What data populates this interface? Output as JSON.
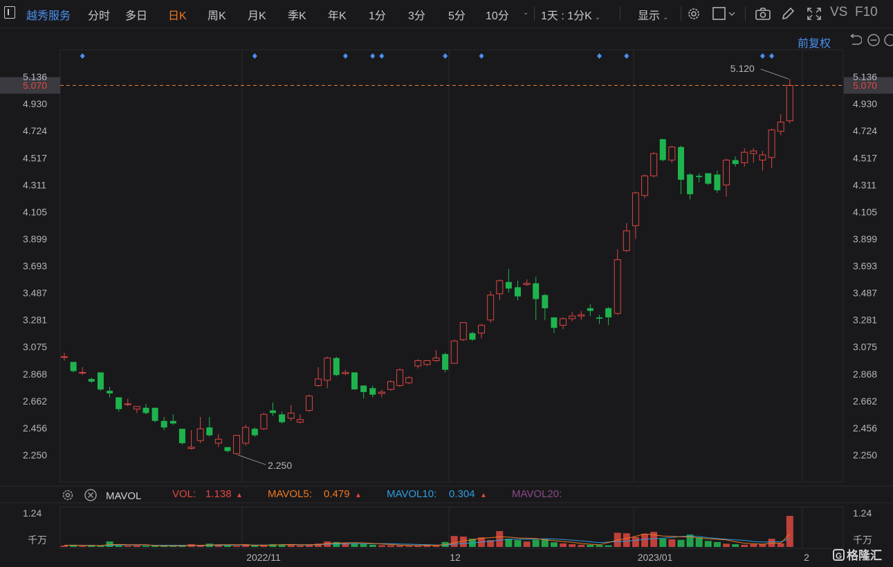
{
  "toolbar": {
    "stock_name": "越秀服务",
    "tabs": [
      "分时",
      "多日",
      "日K",
      "周K",
      "月K",
      "季K",
      "年K",
      "1分",
      "3分",
      "5分",
      "10分"
    ],
    "active_tab": "日K",
    "combo_label": "1天 : 1分K",
    "display_label": "显示",
    "vs_label": "VS",
    "f10_label": "F10",
    "adjust_label": "前复权"
  },
  "colors": {
    "up": "#e0473f",
    "down": "#1fb34e",
    "accent": "#f0781e",
    "link": "#4a90f0",
    "price_line": "#f08030"
  },
  "price_axis": {
    "ticks": [
      "5.136",
      "4.930",
      "4.724",
      "4.517",
      "4.311",
      "4.105",
      "3.899",
      "3.693",
      "3.487",
      "3.281",
      "3.075",
      "2.868",
      "2.662",
      "2.456",
      "2.250"
    ],
    "current_price": "5.070",
    "high_label": "5.120",
    "low_label": "2.250"
  },
  "volume_axis": {
    "max_label": "1.24",
    "unit_label": "千万"
  },
  "x_axis_labels": [
    "2022/11",
    "12",
    "2023/01",
    "2"
  ],
  "indicators": {
    "name": "MAVOL",
    "vol_label": "VOL:",
    "vol_value": "1.138",
    "mavol5_label": "MAVOL5:",
    "mavol5_value": "0.479",
    "mavol10_label": "MAVOL10:",
    "mavol10_value": "0.304",
    "mavol20_label": "MAVOL20:"
  },
  "logo_text": "格隆汇",
  "chart_data": {
    "type": "candlestick",
    "ylim": [
      2.15,
      5.21
    ],
    "candles": [
      {
        "o": 3.0,
        "c": 3.0,
        "h": 3.03,
        "l": 2.97
      },
      {
        "o": 2.96,
        "c": 2.89,
        "h": 2.96,
        "l": 2.88
      },
      {
        "o": 2.88,
        "c": 2.88,
        "h": 2.92,
        "l": 2.86
      },
      {
        "o": 2.83,
        "c": 2.81,
        "h": 2.84,
        "l": 2.8
      },
      {
        "o": 2.88,
        "c": 2.75,
        "h": 2.88,
        "l": 2.74
      },
      {
        "o": 2.74,
        "c": 2.72,
        "h": 2.77,
        "l": 2.69
      },
      {
        "o": 2.69,
        "c": 2.6,
        "h": 2.69,
        "l": 2.58
      },
      {
        "o": 2.64,
        "c": 2.64,
        "h": 2.68,
        "l": 2.62
      },
      {
        "o": 2.6,
        "c": 2.62,
        "h": 2.62,
        "l": 2.57
      },
      {
        "o": 2.61,
        "c": 2.57,
        "h": 2.64,
        "l": 2.56
      },
      {
        "o": 2.61,
        "c": 2.51,
        "h": 2.61,
        "l": 2.5
      },
      {
        "o": 2.51,
        "c": 2.46,
        "h": 2.54,
        "l": 2.44
      },
      {
        "o": 2.51,
        "c": 2.49,
        "h": 2.56,
        "l": 2.48
      },
      {
        "o": 2.45,
        "c": 2.34,
        "h": 2.45,
        "l": 2.33
      },
      {
        "o": 2.3,
        "c": 2.31,
        "h": 2.44,
        "l": 2.29
      },
      {
        "o": 2.36,
        "c": 2.45,
        "h": 2.54,
        "l": 2.34
      },
      {
        "o": 2.46,
        "c": 2.4,
        "h": 2.54,
        "l": 2.39
      },
      {
        "o": 2.34,
        "c": 2.37,
        "h": 2.41,
        "l": 2.31
      },
      {
        "o": 2.31,
        "c": 2.28,
        "h": 2.31,
        "l": 2.27
      },
      {
        "o": 2.26,
        "c": 2.4,
        "h": 2.4,
        "l": 2.25
      },
      {
        "o": 2.34,
        "c": 2.46,
        "h": 2.48,
        "l": 2.32
      },
      {
        "o": 2.45,
        "c": 2.4,
        "h": 2.46,
        "l": 2.39
      },
      {
        "o": 2.45,
        "c": 2.56,
        "h": 2.57,
        "l": 2.44
      },
      {
        "o": 2.59,
        "c": 2.57,
        "h": 2.65,
        "l": 2.55
      },
      {
        "o": 2.56,
        "c": 2.5,
        "h": 2.58,
        "l": 2.49
      },
      {
        "o": 2.53,
        "c": 2.57,
        "h": 2.63,
        "l": 2.51
      },
      {
        "o": 2.5,
        "c": 2.52,
        "h": 2.56,
        "l": 2.49
      },
      {
        "o": 2.59,
        "c": 2.7,
        "h": 2.71,
        "l": 2.58
      },
      {
        "o": 2.78,
        "c": 2.83,
        "h": 2.92,
        "l": 2.77
      },
      {
        "o": 2.82,
        "c": 2.99,
        "h": 3.0,
        "l": 2.76
      },
      {
        "o": 2.99,
        "c": 2.86,
        "h": 3.0,
        "l": 2.85
      },
      {
        "o": 2.87,
        "c": 2.88,
        "h": 2.9,
        "l": 2.86
      },
      {
        "o": 2.88,
        "c": 2.75,
        "h": 2.88,
        "l": 2.75
      },
      {
        "o": 2.78,
        "c": 2.73,
        "h": 2.78,
        "l": 2.68
      },
      {
        "o": 2.76,
        "c": 2.71,
        "h": 2.78,
        "l": 2.69
      },
      {
        "o": 2.72,
        "c": 2.73,
        "h": 2.75,
        "l": 2.69
      },
      {
        "o": 2.75,
        "c": 2.81,
        "h": 2.82,
        "l": 2.74
      },
      {
        "o": 2.78,
        "c": 2.9,
        "h": 2.91,
        "l": 2.77
      },
      {
        "o": 2.8,
        "c": 2.84,
        "h": 2.85,
        "l": 2.79
      },
      {
        "o": 2.93,
        "c": 2.97,
        "h": 2.98,
        "l": 2.91
      },
      {
        "o": 2.94,
        "c": 2.97,
        "h": 2.97,
        "l": 2.93
      },
      {
        "o": 2.97,
        "c": 2.99,
        "h": 3.05,
        "l": 2.96
      },
      {
        "o": 3.02,
        "c": 2.9,
        "h": 3.03,
        "l": 2.88
      },
      {
        "o": 2.95,
        "c": 3.12,
        "h": 3.13,
        "l": 2.95
      },
      {
        "o": 3.13,
        "c": 3.26,
        "h": 3.26,
        "l": 3.12
      },
      {
        "o": 3.18,
        "c": 3.13,
        "h": 3.19,
        "l": 3.12
      },
      {
        "o": 3.18,
        "c": 3.24,
        "h": 3.25,
        "l": 3.14
      },
      {
        "o": 3.28,
        "c": 3.47,
        "h": 3.5,
        "l": 3.26
      },
      {
        "o": 3.48,
        "c": 3.58,
        "h": 3.59,
        "l": 3.43
      },
      {
        "o": 3.57,
        "c": 3.52,
        "h": 3.67,
        "l": 3.49
      },
      {
        "o": 3.53,
        "c": 3.46,
        "h": 3.58,
        "l": 3.43
      },
      {
        "o": 3.55,
        "c": 3.56,
        "h": 3.59,
        "l": 3.54
      },
      {
        "o": 3.56,
        "c": 3.44,
        "h": 3.61,
        "l": 3.28
      },
      {
        "o": 3.47,
        "c": 3.37,
        "h": 3.48,
        "l": 3.28
      },
      {
        "o": 3.3,
        "c": 3.22,
        "h": 3.3,
        "l": 3.18
      },
      {
        "o": 3.24,
        "c": 3.29,
        "h": 3.3,
        "l": 3.21
      },
      {
        "o": 3.29,
        "c": 3.31,
        "h": 3.34,
        "l": 3.27
      },
      {
        "o": 3.31,
        "c": 3.32,
        "h": 3.35,
        "l": 3.28
      },
      {
        "o": 3.37,
        "c": 3.35,
        "h": 3.4,
        "l": 3.31
      },
      {
        "o": 3.3,
        "c": 3.29,
        "h": 3.32,
        "l": 3.25
      },
      {
        "o": 3.37,
        "c": 3.3,
        "h": 3.38,
        "l": 3.24
      },
      {
        "o": 3.33,
        "c": 3.74,
        "h": 3.82,
        "l": 3.32
      },
      {
        "o": 3.81,
        "c": 3.96,
        "h": 4.02,
        "l": 3.8
      },
      {
        "o": 4.0,
        "c": 4.25,
        "h": 4.26,
        "l": 3.9
      },
      {
        "o": 4.23,
        "c": 4.38,
        "h": 4.39,
        "l": 4.21
      },
      {
        "o": 4.38,
        "c": 4.55,
        "h": 4.56,
        "l": 4.37
      },
      {
        "o": 4.66,
        "c": 4.5,
        "h": 4.66,
        "l": 4.49
      },
      {
        "o": 4.5,
        "c": 4.6,
        "h": 4.61,
        "l": 4.48
      },
      {
        "o": 4.6,
        "c": 4.35,
        "h": 4.61,
        "l": 4.24
      },
      {
        "o": 4.39,
        "c": 4.24,
        "h": 4.4,
        "l": 4.2
      },
      {
        "o": 4.38,
        "c": 4.37,
        "h": 4.4,
        "l": 4.33
      },
      {
        "o": 4.4,
        "c": 4.32,
        "h": 4.4,
        "l": 4.31
      },
      {
        "o": 4.39,
        "c": 4.27,
        "h": 4.42,
        "l": 4.25
      },
      {
        "o": 4.31,
        "c": 4.5,
        "h": 4.51,
        "l": 4.22
      },
      {
        "o": 4.5,
        "c": 4.47,
        "h": 4.53,
        "l": 4.45
      },
      {
        "o": 4.48,
        "c": 4.56,
        "h": 4.59,
        "l": 4.45
      },
      {
        "o": 4.55,
        "c": 4.57,
        "h": 4.59,
        "l": 4.48
      },
      {
        "o": 4.5,
        "c": 4.54,
        "h": 4.57,
        "l": 4.42
      },
      {
        "o": 4.52,
        "c": 4.73,
        "h": 4.74,
        "l": 4.44
      },
      {
        "o": 4.72,
        "c": 4.79,
        "h": 4.85,
        "l": 4.69
      },
      {
        "o": 4.8,
        "c": 5.07,
        "h": 5.12,
        "l": 4.78
      }
    ],
    "volume": {
      "ylim": [
        0,
        1.24
      ],
      "values": [
        0.05,
        0.08,
        0.03,
        0.04,
        0.06,
        0.2,
        0.05,
        0.04,
        0.05,
        0.04,
        0.05,
        0.04,
        0.03,
        0.06,
        0.1,
        0.05,
        0.12,
        0.07,
        0.05,
        0.04,
        0.1,
        0.06,
        0.07,
        0.1,
        0.08,
        0.1,
        0.05,
        0.08,
        0.12,
        0.2,
        0.18,
        0.16,
        0.13,
        0.1,
        0.08,
        0.06,
        0.06,
        0.05,
        0.04,
        0.05,
        0.09,
        0.05,
        0.18,
        0.4,
        0.38,
        0.3,
        0.35,
        0.25,
        0.58,
        0.3,
        0.25,
        0.2,
        0.26,
        0.28,
        0.17,
        0.13,
        0.1,
        0.08,
        0.08,
        0.07,
        0.06,
        0.52,
        0.5,
        0.36,
        0.48,
        0.55,
        0.3,
        0.28,
        0.26,
        0.45,
        0.35,
        0.22,
        0.18,
        0.12,
        0.1,
        0.08,
        0.1,
        0.11,
        0.3,
        0.13,
        1.138
      ],
      "mavol5": [
        0.06,
        0.06,
        0.05,
        0.05,
        0.05,
        0.08,
        0.09,
        0.08,
        0.08,
        0.08,
        0.05,
        0.04,
        0.04,
        0.04,
        0.06,
        0.06,
        0.07,
        0.08,
        0.08,
        0.08,
        0.08,
        0.06,
        0.06,
        0.07,
        0.08,
        0.09,
        0.08,
        0.08,
        0.09,
        0.12,
        0.14,
        0.15,
        0.16,
        0.15,
        0.13,
        0.11,
        0.09,
        0.07,
        0.06,
        0.05,
        0.06,
        0.06,
        0.08,
        0.15,
        0.22,
        0.26,
        0.32,
        0.34,
        0.37,
        0.36,
        0.33,
        0.32,
        0.31,
        0.26,
        0.23,
        0.2,
        0.17,
        0.13,
        0.1,
        0.08,
        0.16,
        0.25,
        0.31,
        0.39,
        0.48,
        0.44,
        0.4,
        0.39,
        0.37,
        0.37,
        0.33,
        0.3,
        0.28,
        0.26,
        0.19,
        0.14,
        0.12,
        0.1,
        0.14,
        0.14,
        0.479
      ],
      "mavol10": [
        0.06,
        0.06,
        0.06,
        0.06,
        0.05,
        0.06,
        0.07,
        0.07,
        0.07,
        0.07,
        0.06,
        0.06,
        0.06,
        0.06,
        0.06,
        0.05,
        0.06,
        0.06,
        0.06,
        0.07,
        0.07,
        0.07,
        0.07,
        0.07,
        0.08,
        0.08,
        0.07,
        0.07,
        0.08,
        0.1,
        0.11,
        0.11,
        0.12,
        0.12,
        0.12,
        0.12,
        0.12,
        0.11,
        0.1,
        0.09,
        0.08,
        0.07,
        0.07,
        0.1,
        0.13,
        0.15,
        0.18,
        0.21,
        0.25,
        0.28,
        0.28,
        0.28,
        0.28,
        0.3,
        0.29,
        0.27,
        0.25,
        0.22,
        0.19,
        0.16,
        0.18,
        0.2,
        0.21,
        0.24,
        0.28,
        0.3,
        0.32,
        0.35,
        0.38,
        0.4,
        0.38,
        0.34,
        0.31,
        0.28,
        0.26,
        0.24,
        0.2,
        0.18,
        0.19,
        0.19,
        0.304
      ]
    },
    "markers": [
      2,
      21,
      31,
      34,
      35,
      42,
      46,
      59,
      62,
      77,
      78
    ]
  }
}
